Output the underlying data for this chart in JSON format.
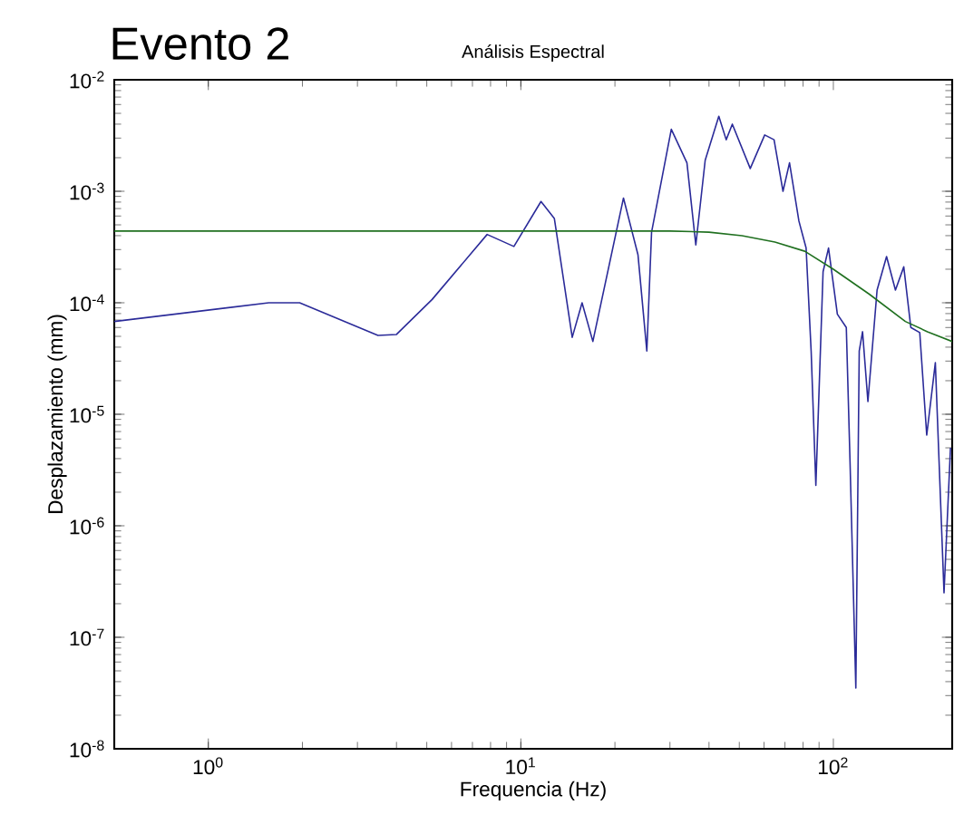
{
  "chart_data": {
    "type": "line",
    "title": "Análisis Espectral",
    "xlabel": "Frequencia (Hz)",
    "ylabel": "Desplazamiento (mm)",
    "annotations": [
      "Evento 2"
    ],
    "log": "xy",
    "grid": false,
    "marker": "none",
    "line_style": "solid",
    "xlim": [
      0.5,
      240
    ],
    "ylim": [
      1e-08,
      0.01
    ],
    "xticks": [
      {
        "value": 1,
        "label": "10$^{0}$"
      },
      {
        "value": 10,
        "label": "10$^{1}$"
      },
      {
        "value": 100,
        "label": "10$^{2}$"
      }
    ],
    "yticks": [
      {
        "value": 1e-08,
        "label": "10$^{-8}$"
      },
      {
        "value": 1e-07,
        "label": "10$^{-7}$"
      },
      {
        "value": 1e-06,
        "label": "10$^{-6}$"
      },
      {
        "value": 1e-05,
        "label": "10$^{-5}$"
      },
      {
        "value": 0.0001,
        "label": "10$^{-4}$"
      },
      {
        "value": 0.001,
        "label": "10$^{-3}$"
      },
      {
        "value": 0.01,
        "label": "10$^{-2}$"
      }
    ],
    "series": [
      {
        "color": "#2b2b99",
        "x": [
          0.5,
          1.56,
          1.96,
          3.49,
          4.0,
          5.2,
          7.8,
          9.5,
          11.6,
          12.8,
          14.6,
          15.7,
          17.0,
          21.3,
          23.7,
          25.3,
          26.2,
          30.3,
          34,
          36.3,
          38.9,
          43,
          45.4,
          47.5,
          54.2,
          60.3,
          64.6,
          69,
          72.4,
          77.6,
          81.8,
          84.9,
          87.9,
          92.7,
          96.5,
          103,
          110,
          113,
          118,
          121,
          124,
          129,
          138,
          148,
          158,
          168,
          177,
          189,
          199,
          212,
          226,
          237
        ],
        "values": [
          6.8e-05,
          0.0001,
          0.0001,
          5.1e-05,
          5.2e-05,
          0.000107,
          0.00041,
          0.00032,
          0.00081,
          0.00057,
          4.9e-05,
          0.0001,
          4.5e-05,
          0.00087,
          0.00027,
          3.7e-05,
          0.00043,
          0.0036,
          0.0018,
          0.00033,
          0.0019,
          0.0047,
          0.0029,
          0.004,
          0.0016,
          0.0032,
          0.0029,
          0.001,
          0.0018,
          0.00054,
          0.00031,
          3.7e-05,
          2.3e-06,
          0.00019,
          0.00031,
          7.9e-05,
          6e-05,
          4e-06,
          3.5e-08,
          3.7e-05,
          5.5e-05,
          1.3e-05,
          0.00013,
          0.00026,
          0.00013,
          0.00021,
          6e-05,
          5.4e-05,
          6.5e-06,
          2.9e-05,
          2.5e-07,
          5e-06
        ]
      },
      {
        "color": "#207020",
        "x": [
          0.5,
          10,
          30,
          40,
          51,
          65,
          81,
          100,
          130,
          170,
          200,
          240
        ],
        "values": [
          0.00044,
          0.00044,
          0.00044,
          0.00043,
          0.0004,
          0.00035,
          0.00029,
          0.0002,
          0.00012,
          6.8e-05,
          5.5e-05,
          4.5e-05
        ]
      }
    ]
  }
}
